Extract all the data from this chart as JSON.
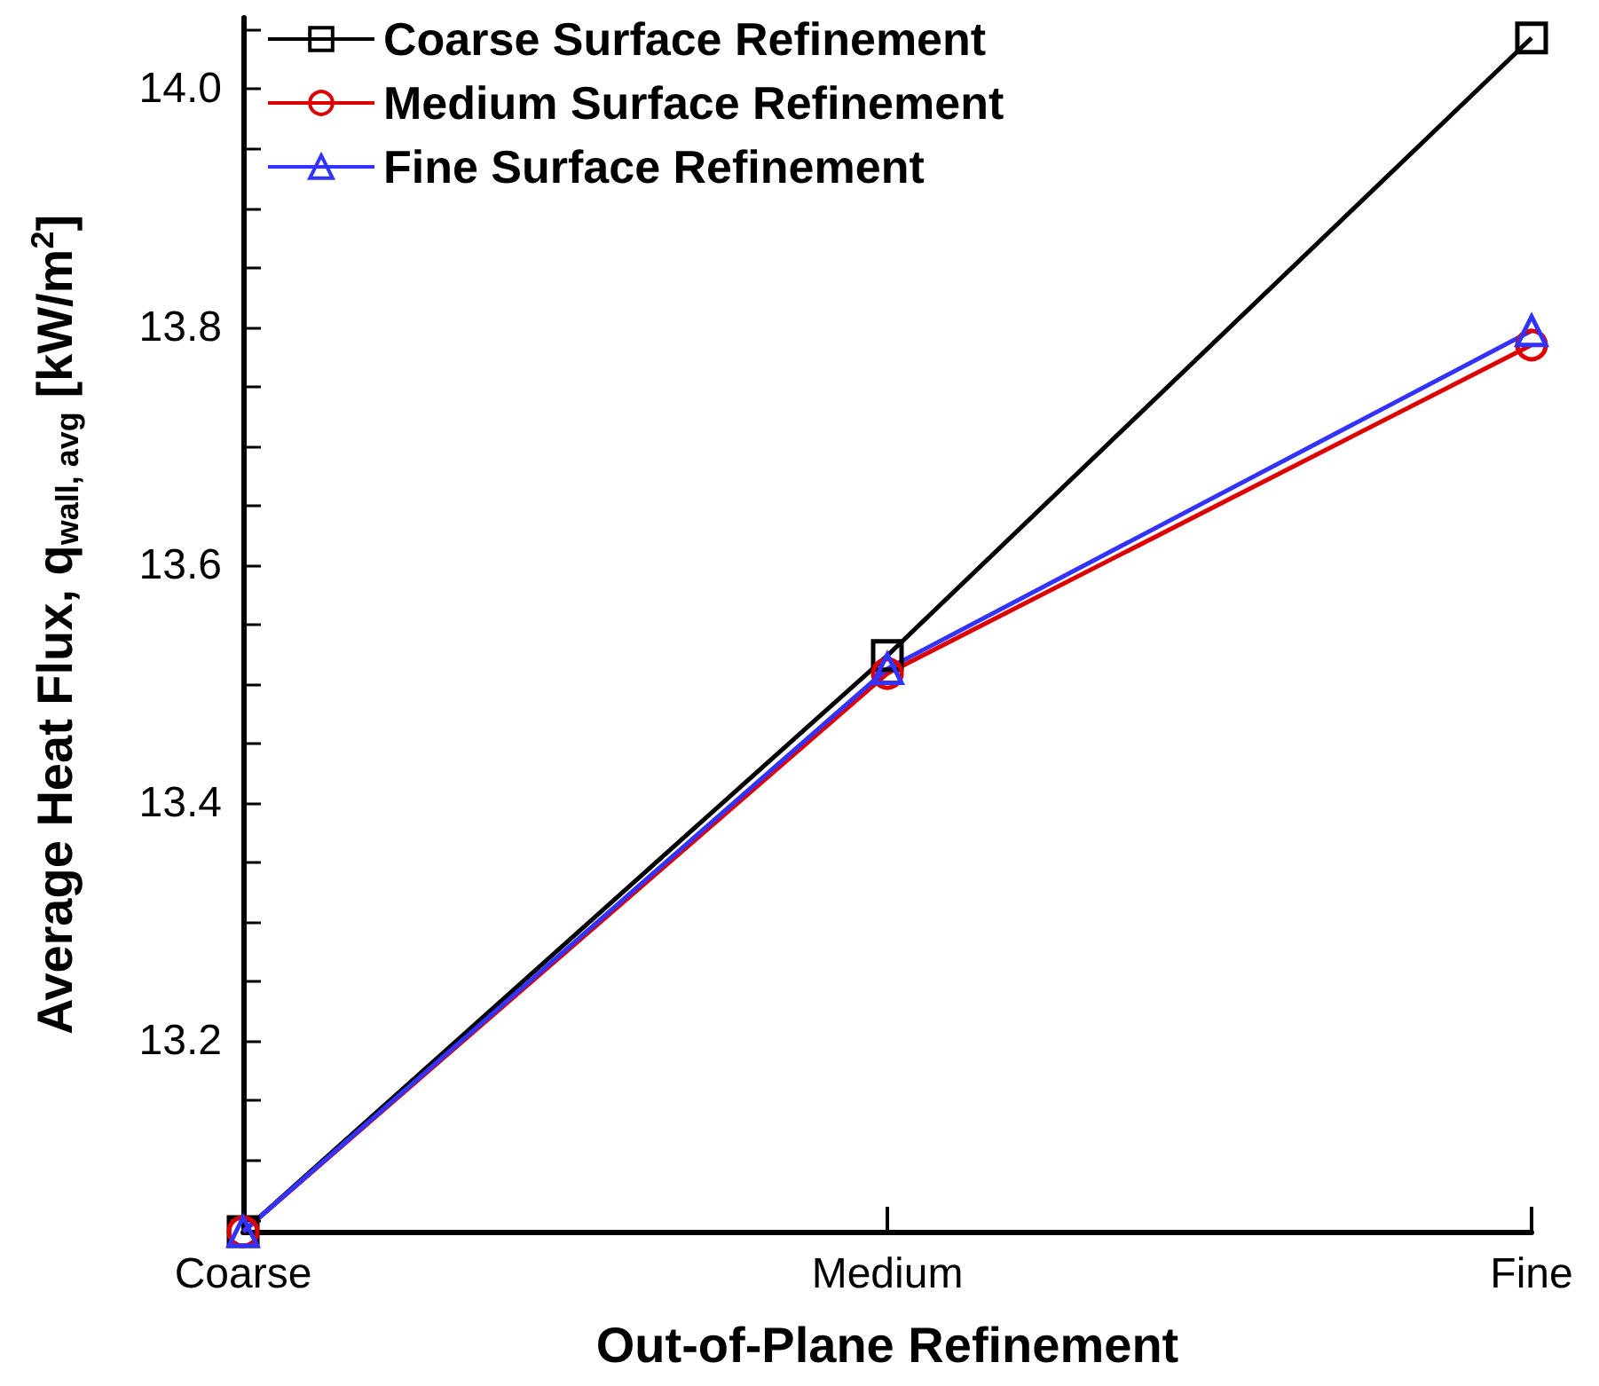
{
  "chart_data": {
    "type": "line",
    "xlabel": "Out-of-Plane Refinement",
    "ylabel": "Average Heat Flux, q$_{wall, avg}$ [kW/m$^{2}$]",
    "categories": [
      "Coarse",
      "Medium",
      "Fine"
    ],
    "series": [
      {
        "name": "Coarse Surface Refinement",
        "color": "#000000",
        "marker": "square",
        "values": [
          13.04,
          13.524,
          14.043
        ]
      },
      {
        "name": "Medium Surface Refinement",
        "color": "#dd0000",
        "marker": "circle",
        "values": [
          13.04,
          13.509,
          13.785
        ]
      },
      {
        "name": "Fine Surface Refinement",
        "color": "#3333ff",
        "marker": "triangle",
        "values": [
          13.04,
          13.513,
          13.797
        ]
      }
    ],
    "ylim": [
      13.04,
      14.06
    ],
    "yticks": [
      {
        "value": 13.05,
        "label": null
      },
      {
        "value": 13.1,
        "label": null
      },
      {
        "value": 13.15,
        "label": null
      },
      13.2,
      {
        "value": 13.25,
        "label": null
      },
      {
        "value": 13.3,
        "label": null
      },
      {
        "value": 13.35,
        "label": null
      },
      13.4,
      {
        "value": 13.45,
        "label": null
      },
      {
        "value": 13.5,
        "label": null
      },
      {
        "value": 13.55,
        "label": null
      },
      13.6,
      {
        "value": 13.65,
        "label": null
      },
      {
        "value": 13.7,
        "label": null
      },
      {
        "value": 13.75,
        "label": null
      },
      13.8,
      {
        "value": 13.85,
        "label": null
      },
      {
        "value": 13.9,
        "label": null
      },
      {
        "value": 13.95,
        "label": null
      },
      {
        "value": 14,
        "label": "14.0"
      },
      {
        "value": 14.05,
        "label": null
      }
    ],
    "grid": false,
    "legend": "top left",
    "line_style": "solid"
  }
}
